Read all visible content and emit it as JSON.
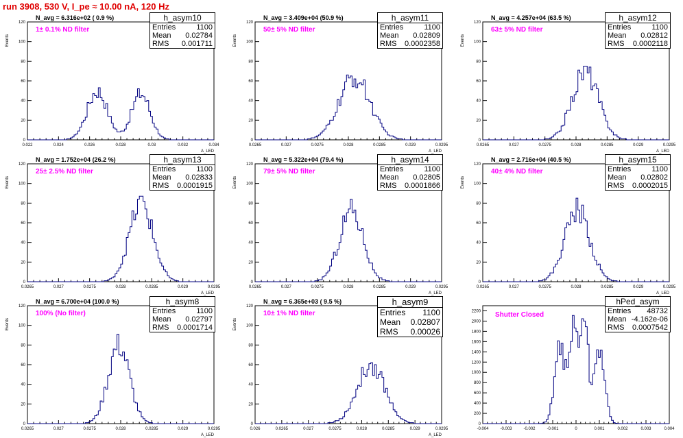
{
  "title": "run 3908,   530 V, I_pe ≈ 10.00 nA, 120 Hz",
  "colors": {
    "title": "#e00000",
    "histogram": "#000080",
    "annotation": "#ff00ff",
    "axis": "#000000"
  },
  "chart_data": [
    {
      "type": "histogram",
      "name": "h_asym10",
      "navg": "N_avg = 6.316e+02 ( 0.9 %)",
      "filter": "1± 0.1% ND filter",
      "stats": {
        "entries": "1100",
        "mean": "0.02784",
        "rms": "0.001711"
      },
      "xlabel": "A_LED",
      "ylabel": "Events",
      "xlim": [
        0.022,
        0.034
      ],
      "ylim": [
        0,
        120
      ],
      "xticks": [
        "0.022",
        "0.024",
        "0.026",
        "0.028",
        "0.03",
        "0.032",
        "0.034"
      ],
      "yticks": [
        "0",
        "20",
        "40",
        "60",
        "80",
        "100",
        "120"
      ],
      "peaks": [
        {
          "center": 0.0265,
          "sigma": 0.00065,
          "height": 50
        },
        {
          "center": 0.0293,
          "sigma": 0.0006,
          "height": 47
        }
      ]
    },
    {
      "type": "histogram",
      "name": "h_asym11",
      "navg": "N_avg = 3.409e+04 (50.9 %)",
      "filter": "50± 5% ND filter",
      "stats": {
        "entries": "1100",
        "mean": "0.02809",
        "rms": "0.0002358"
      },
      "xlabel": "A_LED",
      "ylabel": "Events",
      "xlim": [
        0.0265,
        0.0295
      ],
      "xticks": [
        "0.0265",
        "0.027",
        "0.0275",
        "0.028",
        "0.0285",
        "0.029",
        "0.0295"
      ],
      "yticks": [
        "0",
        "20",
        "40",
        "60",
        "80",
        "100",
        "120"
      ],
      "ylim": [
        0,
        120
      ],
      "peaks": [
        {
          "center": 0.0281,
          "sigma": 0.00025,
          "height": 63
        }
      ]
    },
    {
      "type": "histogram",
      "name": "h_asym12",
      "navg": "N_avg = 4.257e+04 (63.5 %)",
      "filter": "63± 5% ND filter",
      "stats": {
        "entries": "1100",
        "mean": "0.02812",
        "rms": "0.0002118"
      },
      "xlabel": "A_LED",
      "ylabel": "Events",
      "xlim": [
        0.0265,
        0.0295
      ],
      "xticks": [
        "0.0265",
        "0.027",
        "0.0275",
        "0.028",
        "0.0285",
        "0.029",
        "0.0295"
      ],
      "yticks": [
        "0",
        "20",
        "40",
        "60",
        "80",
        "100",
        "120"
      ],
      "ylim": [
        0,
        120
      ],
      "peaks": [
        {
          "center": 0.02815,
          "sigma": 0.00021,
          "height": 70
        }
      ]
    },
    {
      "type": "histogram",
      "name": "h_asym13",
      "navg": "N_avg = 1.752e+04 (26.2 %)",
      "filter": "25± 2.5% ND filter",
      "stats": {
        "entries": "1100",
        "mean": "0.02833",
        "rms": "0.0001915"
      },
      "xlabel": "A_LED",
      "ylabel": "Events",
      "xlim": [
        0.0265,
        0.0295
      ],
      "xticks": [
        "0.0265",
        "0.027",
        "0.0275",
        "0.028",
        "0.0285",
        "0.029",
        "0.0295"
      ],
      "yticks": [
        "0",
        "20",
        "40",
        "60",
        "80",
        "100",
        "120"
      ],
      "ylim": [
        0,
        120
      ],
      "peaks": [
        {
          "center": 0.02833,
          "sigma": 0.00019,
          "height": 80
        }
      ]
    },
    {
      "type": "histogram",
      "name": "h_asym14",
      "navg": "N_avg = 5.322e+04 (79.4 %)",
      "filter": "79± 5% ND filter",
      "stats": {
        "entries": "1100",
        "mean": "0.02805",
        "rms": "0.0001866"
      },
      "xlabel": "A_LED",
      "ylabel": "Events",
      "xlim": [
        0.0265,
        0.0295
      ],
      "xticks": [
        "0.0265",
        "0.027",
        "0.0275",
        "0.028",
        "0.0285",
        "0.029",
        "0.0295"
      ],
      "yticks": [
        "0",
        "20",
        "40",
        "60",
        "80",
        "100",
        "120"
      ],
      "ylim": [
        0,
        120
      ],
      "peaks": [
        {
          "center": 0.02805,
          "sigma": 0.00019,
          "height": 74
        }
      ]
    },
    {
      "type": "histogram",
      "name": "h_asym15",
      "navg": "N_avg = 2.716e+04 (40.5 %)",
      "filter": "40± 4% ND filter",
      "stats": {
        "entries": "1100",
        "mean": "0.02802",
        "rms": "0.0002015"
      },
      "xlabel": "A_LED",
      "ylabel": "Events",
      "xlim": [
        0.0265,
        0.0295
      ],
      "xticks": [
        "0.0265",
        "0.027",
        "0.0275",
        "0.028",
        "0.0285",
        "0.029",
        "0.0295"
      ],
      "yticks": [
        "0",
        "20",
        "40",
        "60",
        "80",
        "100",
        "120"
      ],
      "ylim": [
        0,
        120
      ],
      "peaks": [
        {
          "center": 0.02802,
          "sigma": 0.0002,
          "height": 74
        }
      ]
    },
    {
      "type": "histogram",
      "name": "h_asym8",
      "navg": "N_avg = 6.700e+04 (100.0 %)",
      "filter": "100% (No filter)",
      "stats": {
        "entries": "1100",
        "mean": "0.02797",
        "rms": "0.0001714"
      },
      "xlabel": "A_LED",
      "ylabel": "Events",
      "xlim": [
        0.0265,
        0.0295
      ],
      "xticks": [
        "0.0265",
        "0.027",
        "0.0275",
        "0.028",
        "0.0285",
        "0.029",
        "0.0295"
      ],
      "yticks": [
        "0",
        "20",
        "40",
        "60",
        "80",
        "100",
        "120"
      ],
      "ylim": [
        0,
        120
      ],
      "peaks": [
        {
          "center": 0.02797,
          "sigma": 0.00017,
          "height": 80
        }
      ]
    },
    {
      "type": "histogram",
      "name": "h_asym9",
      "navg": "N_avg = 6.365e+03 ( 9.5 %)",
      "filter": "10± 1% ND filter",
      "stats": {
        "entries": "1100",
        "mean": "0.02807",
        "rms": "0.00026"
      },
      "xlabel": "A_LED",
      "ylabel": "Events",
      "xlim": [
        0.026,
        0.0295
      ],
      "xticks": [
        "0.026",
        "0.0265",
        "0.027",
        "0.0275",
        "0.028",
        "0.0285",
        "0.029",
        "0.0295"
      ],
      "yticks": [
        "0",
        "20",
        "40",
        "60",
        "80",
        "100",
        "120"
      ],
      "ylim": [
        0,
        120
      ],
      "peaks": [
        {
          "center": 0.02818,
          "sigma": 0.00026,
          "height": 60
        }
      ]
    },
    {
      "type": "histogram",
      "name": "hPed_asym",
      "navg": "",
      "filter": "Shutter Closed",
      "stats": {
        "entries": "48732",
        "mean": "-4.162e-06",
        "rms": "0.0007542"
      },
      "xlabel": "",
      "ylabel": "",
      "xlim": [
        -0.004,
        0.004
      ],
      "xticks": [
        "-0.004",
        "-0.003",
        "-0.002",
        "-0.001",
        "0",
        "0.001",
        "0.002",
        "0.003",
        "0.004"
      ],
      "yticks": [
        "0",
        "200",
        "400",
        "600",
        "800",
        "1000",
        "1200",
        "1400",
        "1600",
        "1800",
        "2000",
        "2200"
      ],
      "ylim": [
        0,
        2300
      ],
      "peaks": [
        {
          "center": -0.0007,
          "sigma": 0.00022,
          "height": 1550
        },
        {
          "center": -0.0001,
          "sigma": 0.00018,
          "height": 1850
        },
        {
          "center": 0.00035,
          "sigma": 0.00016,
          "height": 2100
        },
        {
          "center": 0.001,
          "sigma": 0.00022,
          "height": 1500
        }
      ]
    }
  ]
}
